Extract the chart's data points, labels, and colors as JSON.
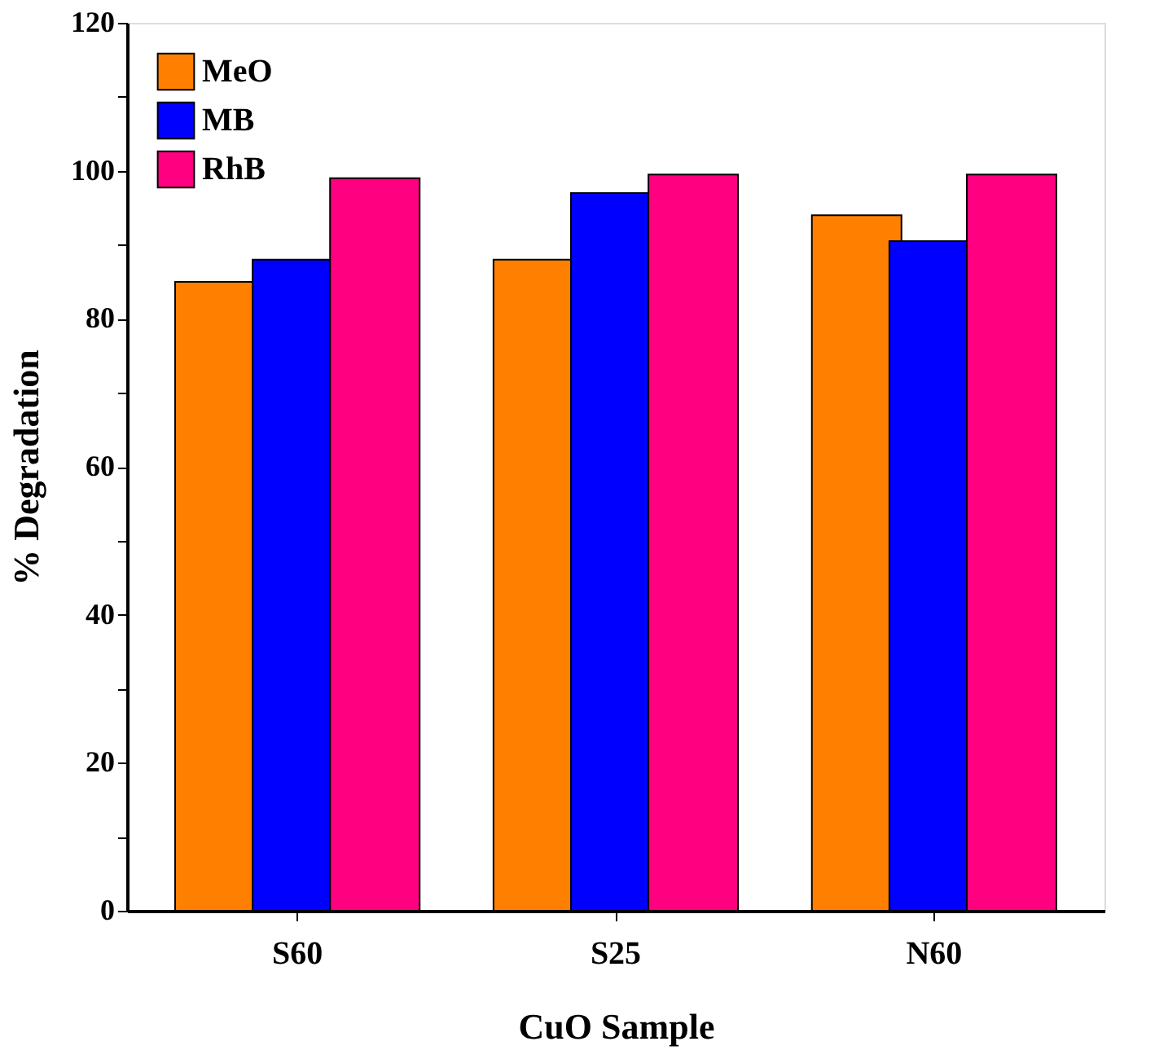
{
  "chart_data": {
    "type": "bar",
    "xlabel": "CuO Sample",
    "ylabel": "% Degradation",
    "categories": [
      "S60",
      "S25",
      "N60"
    ],
    "series": [
      {
        "name": "MeO",
        "color": "#ff8000",
        "values": [
          85,
          88,
          94
        ]
      },
      {
        "name": "MB",
        "color": "#0000ff",
        "values": [
          88,
          97,
          90.5
        ]
      },
      {
        "name": "RhB",
        "color": "#ff0080",
        "values": [
          99,
          99.5,
          99.5
        ]
      }
    ],
    "ylim": [
      0,
      120
    ],
    "yticks": [
      0,
      {
        "value": 10,
        "label": null
      },
      20,
      {
        "value": 30,
        "label": null
      },
      40,
      {
        "value": 50,
        "label": null
      },
      60,
      {
        "value": 70,
        "label": null
      },
      80,
      {
        "value": 90,
        "label": null
      },
      100,
      {
        "value": 110,
        "label": null
      },
      120
    ],
    "grid": false,
    "legend": "top left"
  }
}
